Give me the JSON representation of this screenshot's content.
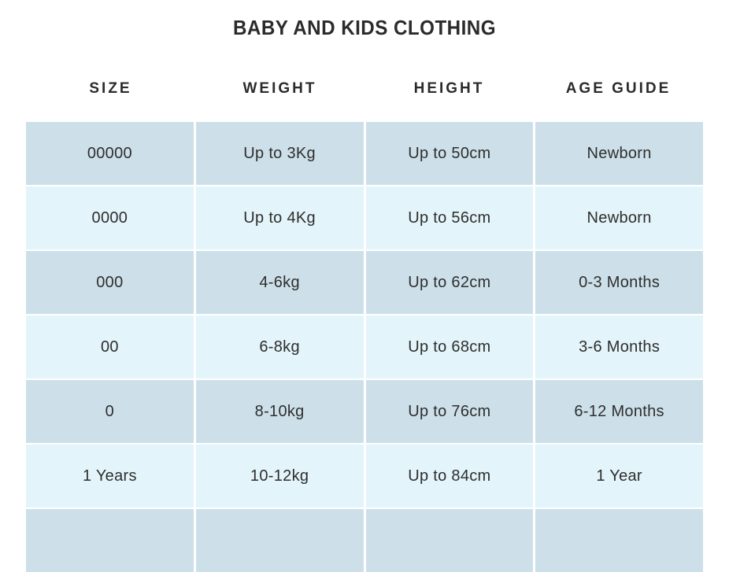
{
  "title": "BABY AND KIDS CLOTHING",
  "table": {
    "columns": [
      "SIZE",
      "WEIGHT",
      "HEIGHT",
      "AGE GUIDE"
    ],
    "rows": [
      [
        "00000",
        "Up to 3Kg",
        "Up to 50cm",
        "Newborn"
      ],
      [
        "0000",
        "Up to 4Kg",
        "Up to 56cm",
        "Newborn"
      ],
      [
        "000",
        "4-6kg",
        "Up to 62cm",
        "0-3 Months"
      ],
      [
        "00",
        "6-8kg",
        "Up to 68cm",
        "3-6 Months"
      ],
      [
        "0",
        "8-10kg",
        "Up to 76cm",
        "6-12 Months"
      ],
      [
        "1 Years",
        "10-12kg",
        "Up to 84cm",
        "1 Year"
      ]
    ],
    "partial_row_visible": true
  },
  "colors": {
    "row_dark": "#cde0e9",
    "row_light": "#e3f4fa",
    "text": "#2b2b2b",
    "background": "#ffffff"
  }
}
